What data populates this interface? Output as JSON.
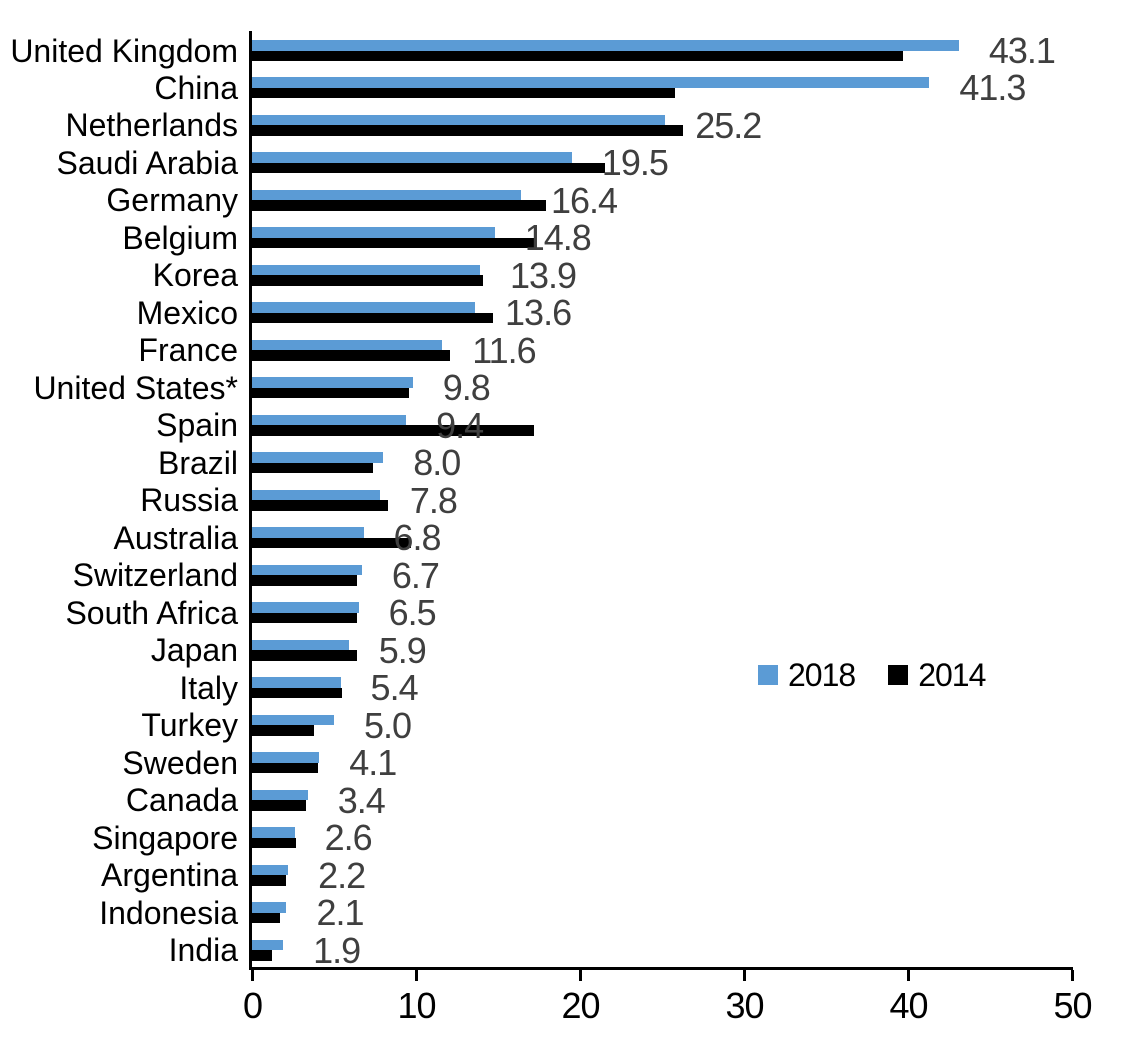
{
  "chart_data": {
    "type": "bar",
    "orientation": "horizontal",
    "title": "",
    "xlabel": "",
    "ylabel": "",
    "categories": [
      "United Kingdom",
      "China",
      "Netherlands",
      "Saudi Arabia",
      "Germany",
      "Belgium",
      "Korea",
      "Mexico",
      "France",
      "United States*",
      "Spain",
      "Brazil",
      "Russia",
      "Australia",
      "Switzerland",
      "South Africa",
      "Japan",
      "Italy",
      "Turkey",
      "Sweden",
      "Canada",
      "Singapore",
      "Argentina",
      "Indonesia",
      "India"
    ],
    "series": [
      {
        "name": "2018",
        "color": "#5B9BD5",
        "values": [
          43.1,
          41.3,
          25.2,
          19.5,
          16.4,
          14.8,
          13.9,
          13.6,
          11.6,
          9.8,
          9.4,
          8.0,
          7.8,
          6.8,
          6.7,
          6.5,
          5.9,
          5.4,
          5.0,
          4.1,
          3.4,
          2.6,
          2.2,
          2.1,
          1.9
        ]
      },
      {
        "name": "2014",
        "color": "#000000",
        "values": [
          39.7,
          25.8,
          26.3,
          21.5,
          17.9,
          17.2,
          14.1,
          14.7,
          12.1,
          9.6,
          17.2,
          7.4,
          8.3,
          9.7,
          6.4,
          6.4,
          6.4,
          5.5,
          3.8,
          4.0,
          3.3,
          2.7,
          2.1,
          1.7,
          1.2
        ]
      }
    ],
    "data_labels": [
      "43.1",
      "41.3",
      "25.2",
      "19.5",
      "16.4",
      "14.8",
      "13.9",
      "13.6",
      "11.6",
      "9.8",
      "9.4",
      "8.0",
      "7.8",
      "6.8",
      "6.7",
      "6.5",
      "5.9",
      "5.4",
      "5.0",
      "4.1",
      "3.4",
      "2.6",
      "2.2",
      "2.1",
      "1.9"
    ],
    "data_labels_series": "2018",
    "x_axis": {
      "min": 0,
      "max": 50,
      "ticks": [
        "0",
        "10",
        "20",
        "30",
        "40",
        "50"
      ]
    },
    "legend": {
      "position": "middle-right",
      "entries": [
        {
          "label": "2018",
          "color": "#5B9BD5"
        },
        {
          "label": "2014",
          "color": "#000000"
        }
      ]
    },
    "colors": {
      "bar_2018": "#5B9BD5",
      "bar_2014": "#000000",
      "data_label": "#3F3F3F",
      "axis": "#000000",
      "background": "#FFFFFF"
    },
    "grid": "off"
  }
}
